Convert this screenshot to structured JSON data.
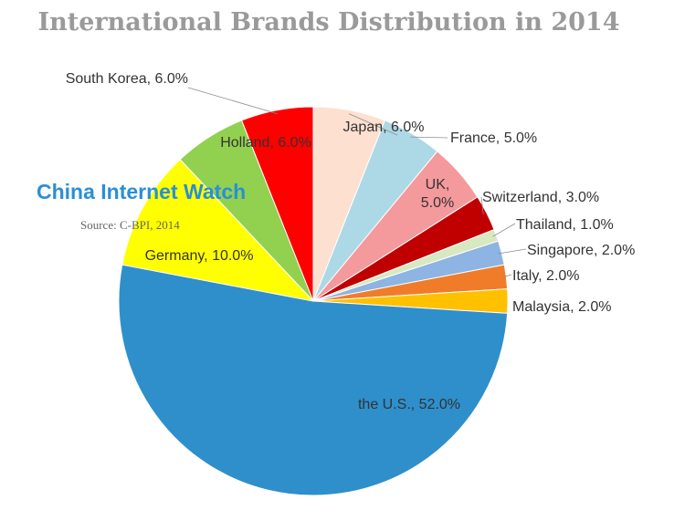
{
  "chart_data": {
    "type": "pie",
    "title": "International Brands Distribution in 2014",
    "source": "Source: C-BPI, 2014",
    "watermark": "China Internet Watch",
    "slices": [
      {
        "label": "Japan, 6.0%",
        "value": 6.0,
        "color": "#fde0d0"
      },
      {
        "label": "France, 5.0%",
        "value": 5.0,
        "color": "#add8e6"
      },
      {
        "label": "UK, 5.0%",
        "value": 5.0,
        "color": "#f4999c"
      },
      {
        "label": "Switzerland, 3.0%",
        "value": 3.0,
        "color": "#c00000"
      },
      {
        "label": "Thailand, 1.0%",
        "value": 1.0,
        "color": "#d8e8c0"
      },
      {
        "label": "Singapore, 2.0%",
        "value": 2.0,
        "color": "#8db4e2"
      },
      {
        "label": "Italy, 2.0%",
        "value": 2.0,
        "color": "#f07c2a"
      },
      {
        "label": "Malaysia, 2.0%",
        "value": 2.0,
        "color": "#ffc000"
      },
      {
        "label": "the U.S., 52.0%",
        "value": 52.0,
        "color": "#2e8fcb"
      },
      {
        "label": "Germany, 10.0%",
        "value": 10.0,
        "color": "#ffff00"
      },
      {
        "label": "Holland, 6.0%",
        "value": 6.0,
        "color": "#92d050"
      },
      {
        "label": "South Korea, 6.0%",
        "value": 6.0,
        "color": "#ff0000"
      }
    ]
  }
}
